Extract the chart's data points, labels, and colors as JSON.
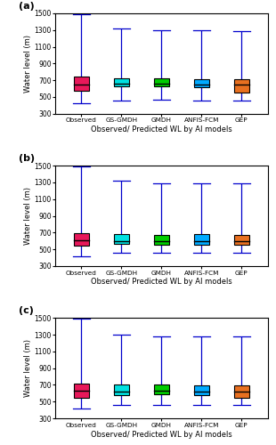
{
  "scenarios": [
    "(a)",
    "(b)",
    "(c)"
  ],
  "categories": [
    "Observed",
    "GS-GMDH",
    "GMDH",
    "ANFIS-FCM",
    "GEP"
  ],
  "box_colors": [
    "#E8185A",
    "#00E0E0",
    "#00CC00",
    "#00AAFF",
    "#E87020"
  ],
  "edge_color": "#000000",
  "whisker_color": "#0000CC",
  "median_color": "#000000",
  "xlabel": "Observed/ Predicted WL by AI models",
  "ylabel": "Water level (m)",
  "ylim": [
    300,
    1500
  ],
  "yticks": [
    300,
    500,
    700,
    900,
    1100,
    1300,
    1500
  ],
  "scenario_a": {
    "whisker_low": [
      420,
      460,
      470,
      460,
      460
    ],
    "q1": [
      570,
      630,
      625,
      615,
      555
    ],
    "median": [
      650,
      660,
      655,
      650,
      645
    ],
    "q3": [
      740,
      725,
      720,
      710,
      710
    ],
    "whisker_high": [
      1490,
      1320,
      1300,
      1300,
      1290
    ]
  },
  "scenario_b": {
    "whisker_low": [
      420,
      460,
      460,
      460,
      460
    ],
    "q1": [
      540,
      565,
      555,
      550,
      555
    ],
    "median": [
      610,
      600,
      595,
      600,
      595
    ],
    "q3": [
      695,
      680,
      670,
      678,
      675
    ],
    "whisker_high": [
      1490,
      1320,
      1290,
      1285,
      1285
    ]
  },
  "scenario_c": {
    "whisker_low": [
      420,
      460,
      460,
      460,
      460
    ],
    "q1": [
      550,
      580,
      585,
      578,
      550
    ],
    "median": [
      625,
      620,
      625,
      620,
      615
    ],
    "q3": [
      715,
      700,
      700,
      695,
      693
    ],
    "whisker_high": [
      1490,
      1300,
      1275,
      1275,
      1285
    ]
  }
}
